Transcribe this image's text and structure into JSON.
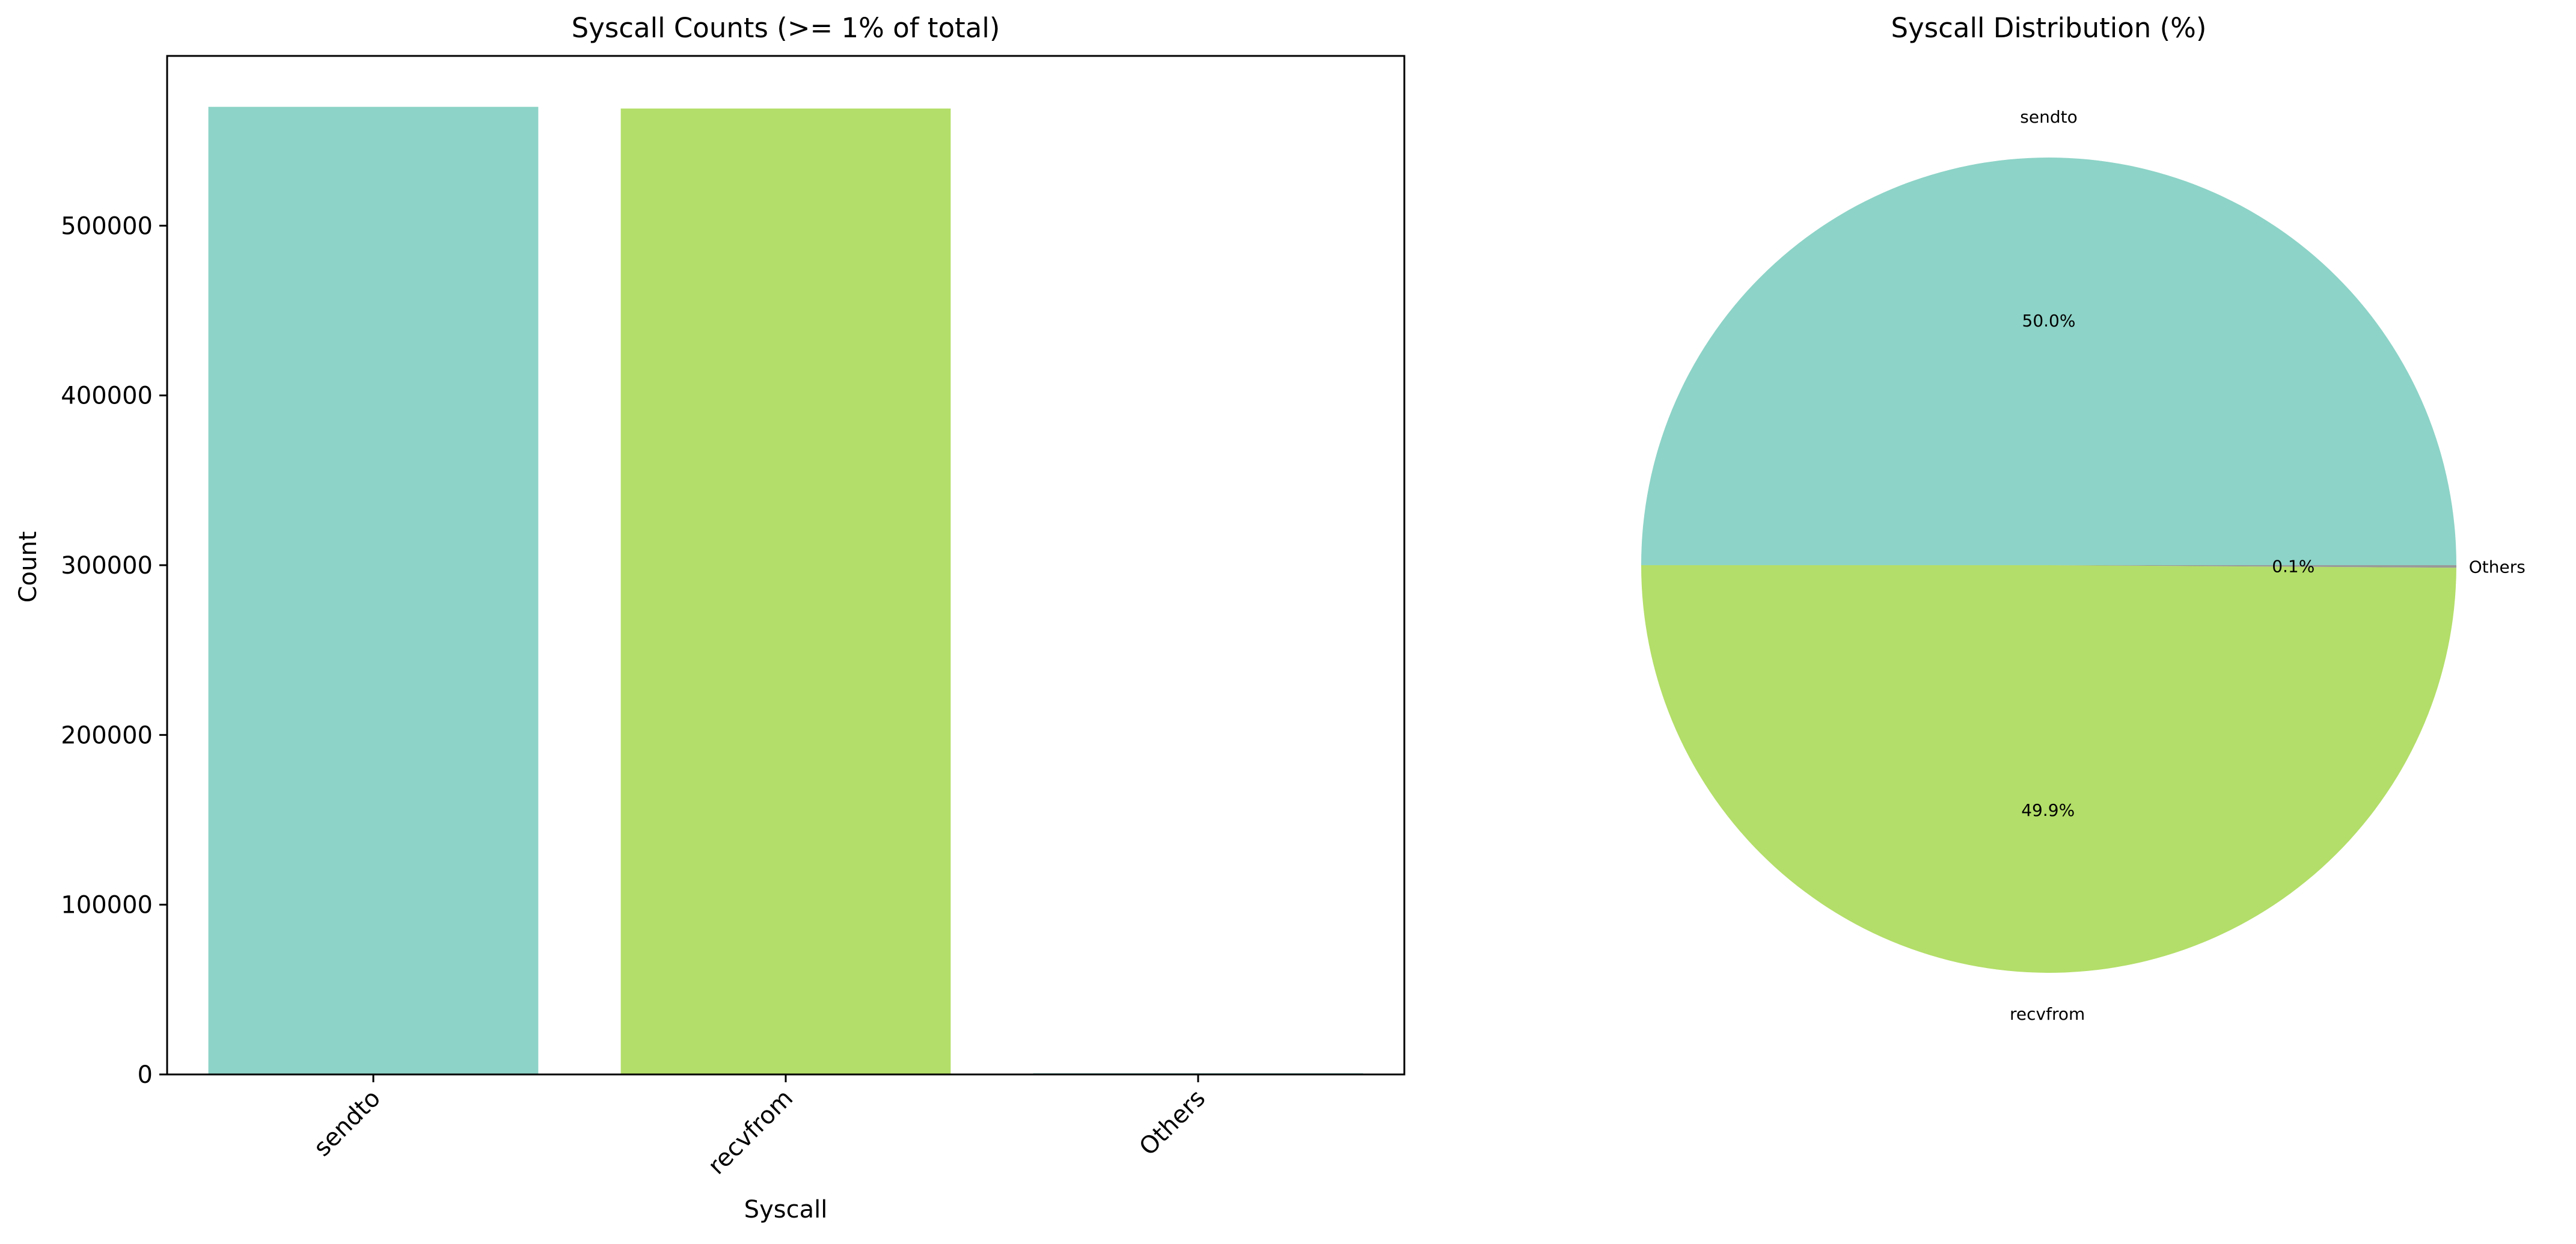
{
  "chart_data": [
    {
      "type": "bar",
      "title": "Syscall Counts (>= 1% of total)",
      "xlabel": "Syscall",
      "ylabel": "Count",
      "categories": [
        "sendto",
        "recvfrom",
        "Others"
      ],
      "values": [
        570000,
        569000,
        700
      ],
      "ylim": [
        0,
        600000
      ],
      "yticks": [
        0,
        100000,
        200000,
        300000,
        400000,
        500000
      ],
      "ytick_labels": [
        "0",
        "100000",
        "200000",
        "300000",
        "400000",
        "500000"
      ],
      "colors": [
        "#8dd3c7",
        "#b3de69",
        "#8dd3c7"
      ],
      "grid": false,
      "legend": "none"
    },
    {
      "type": "pie",
      "title": "Syscall Distribution (%)",
      "labels": [
        "sendto",
        "recvfrom",
        "Others"
      ],
      "values": [
        50.0,
        49.9,
        0.1
      ],
      "value_labels": [
        "50.0%",
        "49.9%",
        "0.1%"
      ],
      "colors": [
        "#8dd3c7",
        "#b3de69",
        "#999999"
      ],
      "start_angle_deg": 0,
      "direction": "counterclockwise",
      "legend": "none"
    }
  ]
}
